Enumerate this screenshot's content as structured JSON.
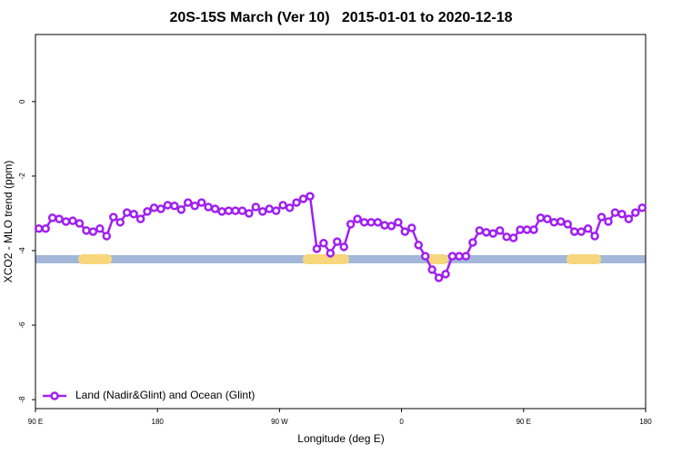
{
  "chart_data": {
    "type": "line",
    "title": "20S-15S March (Ver 10)   2015-01-01 to 2020-12-18",
    "xlabel": "Longitude (deg E)",
    "ylabel": "XCO2 - MLO trend (ppm)",
    "xlim": [
      90,
      540
    ],
    "ylim": [
      -8.24,
      1.8
    ],
    "xticks": [
      {
        "value": 90,
        "label": "90 E"
      },
      180,
      {
        "value": 270,
        "label": "90 W"
      },
      {
        "value": 360,
        "label": "0"
      },
      {
        "value": 450,
        "label": "90 E"
      },
      {
        "value": 540,
        "label": "180"
      }
    ],
    "yticks": [
      0,
      -2,
      -4,
      -6,
      -8
    ],
    "legend": "bottom-left",
    "x": [
      92.5,
      97.5,
      102.5,
      107.5,
      112.5,
      117.5,
      122.5,
      127.5,
      132.5,
      137.5,
      142.5,
      147.5,
      152.5,
      157.5,
      162.5,
      167.5,
      172.5,
      177.5,
      182.5,
      187.5,
      192.5,
      197.5,
      202.5,
      207.5,
      212.5,
      217.5,
      222.5,
      227.5,
      232.5,
      237.5,
      242.5,
      247.5,
      252.5,
      257.5,
      262.5,
      267.5,
      272.5,
      277.5,
      282.5,
      287.5,
      292.5,
      297.5,
      302.5,
      307.5,
      312.5,
      317.5,
      322.5,
      327.5,
      332.5,
      337.5,
      342.5,
      347.5,
      352.5,
      357.5,
      362.5,
      367.5,
      372.5,
      377.5,
      382.5,
      387.5,
      392.5,
      397.5,
      402.5,
      407.5,
      412.5,
      417.5,
      422.5,
      427.5,
      432.5,
      437.5,
      442.5,
      447.5,
      452.5,
      457.5,
      462.5,
      467.5,
      472.5,
      477.5,
      482.5,
      487.5,
      492.5,
      497.5,
      502.5,
      507.5,
      512.5,
      517.5,
      522.5,
      527.5,
      532.5,
      537.5
    ],
    "series": [
      {
        "name": "Land (Nadir&Glint) and Ocean (Glint)",
        "color": "#a020f0",
        "values": [
          -3.41,
          -3.41,
          -3.12,
          -3.15,
          -3.22,
          -3.2,
          -3.27,
          -3.46,
          -3.49,
          -3.41,
          -3.61,
          -3.1,
          -3.24,
          -2.98,
          -3.02,
          -3.15,
          -2.95,
          -2.85,
          -2.88,
          -2.78,
          -2.8,
          -2.9,
          -2.71,
          -2.8,
          -2.71,
          -2.83,
          -2.88,
          -2.95,
          -2.93,
          -2.93,
          -2.93,
          -3.0,
          -2.83,
          -2.95,
          -2.88,
          -2.93,
          -2.78,
          -2.85,
          -2.71,
          -2.61,
          -2.54,
          -3.95,
          -3.8,
          -4.07,
          -3.76,
          -3.9,
          -3.29,
          -3.15,
          -3.24,
          -3.24,
          -3.24,
          -3.32,
          -3.34,
          -3.24,
          -3.49,
          -3.39,
          -3.85,
          -4.15,
          -4.51,
          -4.73,
          -4.63,
          -4.15,
          -4.15,
          -4.15,
          -3.78,
          -3.46,
          -3.51,
          -3.54,
          -3.46,
          -3.63,
          -3.66,
          -3.44,
          -3.44,
          -3.44,
          -3.12,
          -3.15,
          -3.24,
          -3.22,
          -3.29,
          -3.49,
          -3.49,
          -3.41,
          -3.61,
          -3.1,
          -3.22,
          -2.98,
          -3.02,
          -3.15,
          -2.98,
          -2.85
        ]
      }
    ]
  }
}
